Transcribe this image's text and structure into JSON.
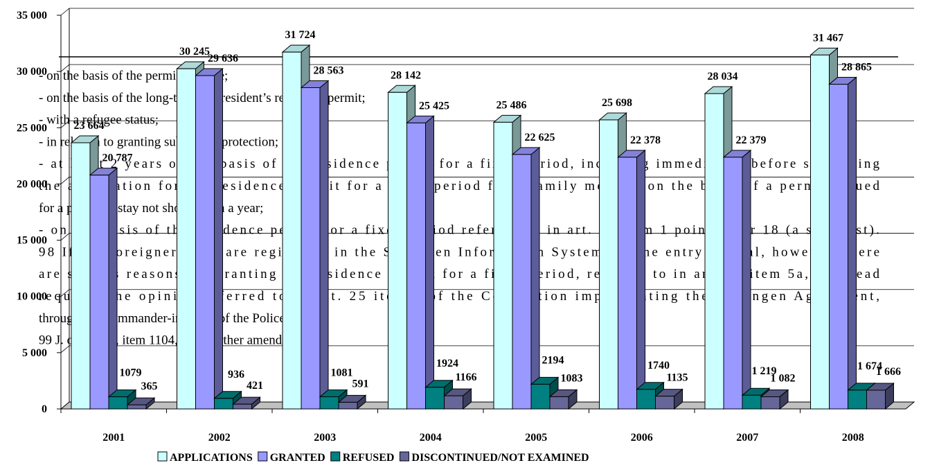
{
  "chart_data": {
    "type": "bar3d",
    "categories": [
      "2001",
      "2002",
      "2003",
      "2004",
      "2005",
      "2006",
      "2007",
      "2008"
    ],
    "series": [
      {
        "name": "APPLICATIONS",
        "color": "#ccffff",
        "values": [
          23664,
          30245,
          31724,
          28142,
          25486,
          25698,
          28034,
          31467
        ],
        "value_labels": [
          "23 664",
          "30 245",
          "31 724",
          "28 142",
          "25 486",
          "25 698",
          "28 034",
          "31 467"
        ]
      },
      {
        "name": "GRANTED",
        "color": "#9999ff",
        "values": [
          20787,
          29636,
          28563,
          25425,
          22625,
          22378,
          22379,
          28865
        ],
        "value_labels": [
          "20 787",
          "29 636",
          "28 563",
          "25 425",
          "22 625",
          "22 378",
          "22 379",
          "28 865"
        ]
      },
      {
        "name": "REFUSED",
        "color": "#008080",
        "values": [
          1079,
          936,
          1081,
          1924,
          2194,
          1740,
          1219,
          1674
        ],
        "value_labels": [
          "1079",
          "936",
          "1081",
          "1924",
          "2194",
          "1740",
          "1 219",
          "1 674"
        ]
      },
      {
        "name": "DISCONTINUED/NOT EXAMINED",
        "color": "#666699",
        "values": [
          365,
          421,
          591,
          1166,
          1083,
          1135,
          1082,
          1666
        ],
        "value_labels": [
          "365",
          "421",
          "591",
          "1166",
          "1083",
          "1135",
          "1 082",
          "1 666"
        ]
      }
    ],
    "ylim": [
      0,
      35000
    ],
    "yticks": [
      0,
      {
        "value": 5000,
        "label": "5 000"
      },
      {
        "value": 10000,
        "label": "10 000"
      },
      {
        "value": 15000,
        "label": "15 000"
      },
      {
        "value": 20000,
        "label": "20 000"
      },
      {
        "value": 25000,
        "label": "25 000"
      },
      {
        "value": 30000,
        "label": "30 000"
      },
      {
        "value": 35000,
        "label": "35 000"
      }
    ],
    "grid": true,
    "legend": "bottom"
  },
  "overlay_text": [
    "- on the basis of the permit to settle;",
    "- on the basis of the long-term EC resident’s residence permit;",
    "- with a refugee status;",
    "- in relation to granting subsidiary protection;",
    "- at least 2 years on the basis of the residence permit for a fixed period, including immediately before submitting",
    "the application for the residence permit for a fixed period for a family member on the basis of a permit issued",
    "for a period of stay not shorter than a year;",
    "- on the basis of the residence permit for a fixed period referred to in art. 53 item 1 point 17 or 18 (a scientist).",
    "98 If the foreigners who are registered in the Schengen Information System for the entry refusal, however, there",
    "are serious reasons for granting the residence permit for a fixed period, referred to in art. 50 item 5a, the Head",
    "requests the opinion referred to in art. 25 item 1 of the Convention implementing the Schengen Agreement,",
    "through the Commander-in-Chief of the Police.",
    "99 J. of L. 126, item 1104, with further amendments."
  ]
}
